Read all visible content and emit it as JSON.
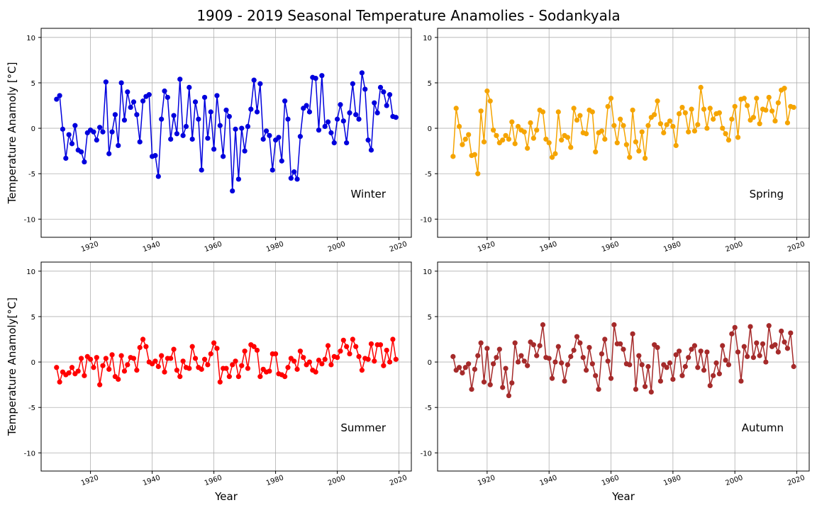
{
  "figure": {
    "title": "1909 - 2019 Seasonal Temperature Anamolies - Sodankyala"
  },
  "chart_data": [
    {
      "type": "line",
      "season_label": "Winter",
      "color": "#0000dd",
      "ylabel": "Temperature Anamoly [°C]",
      "xlabel": "",
      "xlim": [
        1904,
        2024
      ],
      "ylim": [
        -12,
        11
      ],
      "xticks": [
        1920,
        1940,
        1960,
        1980,
        2000,
        2020
      ],
      "yticks": [
        -10,
        -5,
        0,
        5,
        10
      ],
      "grid": true,
      "x_start": 1909,
      "values": [
        3.2,
        3.6,
        -0.1,
        -3.3,
        -0.7,
        -1.7,
        0.3,
        -2.4,
        -2.6,
        -3.7,
        -0.5,
        -0.2,
        -0.4,
        -1.3,
        0.1,
        -0.4,
        5.1,
        -2.8,
        -0.4,
        1.5,
        -1.9,
        5.0,
        0.9,
        4.0,
        2.3,
        2.9,
        1.5,
        -1.5,
        3.0,
        3.5,
        3.7,
        -3.1,
        -3.0,
        -5.3,
        1.0,
        4.1,
        3.4,
        -1.2,
        1.4,
        -0.6,
        5.4,
        -0.8,
        0.2,
        4.5,
        -1.2,
        2.9,
        1.0,
        -4.6,
        3.4,
        -1.1,
        1.8,
        -2.3,
        3.6,
        0.3,
        -3.1,
        2.0,
        1.3,
        -6.9,
        -0.1,
        -5.6,
        0.0,
        -2.5,
        0.2,
        2.1,
        5.3,
        1.8,
        4.9,
        -1.2,
        -0.3,
        -0.8,
        -4.6,
        -1.3,
        -1.0,
        -3.6,
        3.0,
        1.0,
        -5.5,
        -4.8,
        -5.6,
        -0.9,
        2.2,
        2.5,
        1.8,
        5.6,
        5.5,
        -0.2,
        5.8,
        0.2,
        0.7,
        -0.5,
        -1.6,
        1.0,
        2.6,
        0.8,
        -1.6,
        1.7,
        4.9,
        1.5,
        1.0,
        6.1,
        4.3,
        -1.3,
        -2.4,
        2.8,
        1.7,
        4.5,
        4.0,
        2.5,
        3.7,
        1.3,
        1.2
      ]
    },
    {
      "type": "line",
      "season_label": "Spring",
      "color": "#f5a400",
      "ylabel": "",
      "xlabel": "",
      "xlim": [
        1904,
        2024
      ],
      "ylim": [
        -12,
        11
      ],
      "xticks": [
        1920,
        1940,
        1960,
        1980,
        2000,
        2020
      ],
      "yticks": [
        -10,
        -5,
        0,
        5,
        10
      ],
      "grid": true,
      "x_start": 1909,
      "values": [
        -3.1,
        2.2,
        0.2,
        -1.8,
        -1.2,
        -0.7,
        -3.0,
        -2.9,
        -5.0,
        1.9,
        -1.5,
        4.1,
        3.0,
        -0.2,
        -0.8,
        -1.6,
        -1.3,
        -0.8,
        -1.2,
        0.7,
        -1.7,
        0.2,
        -0.2,
        -0.4,
        -2.2,
        0.6,
        -1.1,
        -0.2,
        2.0,
        1.8,
        -1.2,
        -1.6,
        -3.2,
        -2.8,
        1.8,
        -1.3,
        -0.8,
        -1.0,
        -2.1,
        2.2,
        0.9,
        1.4,
        -0.5,
        -0.6,
        2.0,
        1.8,
        -2.6,
        -0.5,
        -0.3,
        -1.2,
        2.4,
        3.3,
        0.3,
        -1.6,
        1.0,
        0.3,
        -1.8,
        -3.2,
        2.0,
        -1.5,
        -2.5,
        -0.4,
        -3.3,
        0.3,
        1.2,
        1.5,
        3.0,
        0.5,
        -0.5,
        0.4,
        0.8,
        0.2,
        -1.9,
        1.6,
        2.3,
        1.7,
        -0.4,
        2.1,
        -0.3,
        0.4,
        4.5,
        2.1,
        0.0,
        2.2,
        1.0,
        1.6,
        1.7,
        0.0,
        -0.6,
        -1.3,
        1.0,
        2.4,
        -1.0,
        3.2,
        3.3,
        2.5,
        0.9,
        1.2,
        3.3,
        0.5,
        2.1,
        2.0,
        3.4,
        1.9,
        0.8,
        2.8,
        4.2,
        4.4,
        0.6,
        2.4,
        2.3
      ]
    },
    {
      "type": "line",
      "season_label": "Summer",
      "color": "#ff0000",
      "ylabel": "Temperature Anamoly[°C]",
      "xlabel": "Year",
      "xlim": [
        1904,
        2024
      ],
      "ylim": [
        -12,
        11
      ],
      "xticks": [
        1920,
        1940,
        1960,
        1980,
        2000,
        2020
      ],
      "yticks": [
        -10,
        -5,
        0,
        5,
        10
      ],
      "grid": true,
      "x_start": 1909,
      "values": [
        -0.6,
        -2.2,
        -1.1,
        -1.4,
        -1.2,
        -0.6,
        -1.3,
        -1.0,
        0.4,
        -1.5,
        0.6,
        0.3,
        -0.6,
        0.5,
        -2.5,
        -0.4,
        0.4,
        -0.8,
        0.8,
        -1.6,
        -1.9,
        0.7,
        -1.0,
        -0.3,
        0.5,
        0.4,
        -0.9,
        1.6,
        2.5,
        1.7,
        0.0,
        -0.2,
        0.1,
        -0.5,
        0.7,
        -1.1,
        0.4,
        0.4,
        1.4,
        -0.9,
        -1.6,
        0.1,
        -0.6,
        -0.7,
        1.7,
        0.4,
        -0.6,
        -0.8,
        0.3,
        -0.3,
        0.9,
        2.1,
        1.5,
        -2.2,
        -0.7,
        -0.7,
        -1.6,
        -0.3,
        0.1,
        -1.6,
        -0.4,
        1.2,
        -0.7,
        1.9,
        1.7,
        1.3,
        -1.6,
        -0.8,
        -1.1,
        -1.0,
        0.9,
        0.9,
        -1.3,
        -1.4,
        -1.6,
        -0.6,
        0.4,
        0.1,
        -0.8,
        1.2,
        0.5,
        -0.3,
        0.0,
        -0.9,
        -1.1,
        0.2,
        -0.2,
        0.3,
        1.8,
        -0.3,
        0.6,
        0.5,
        1.2,
        2.4,
        1.7,
        0.9,
        2.5,
        1.7,
        0.6,
        -0.9,
        0.4,
        0.3,
        2.0,
        0.1,
        1.9,
        1.9,
        -0.4,
        1.3,
        0.0,
        2.5,
        0.3
      ]
    },
    {
      "type": "line",
      "season_label": "Autumn",
      "color": "#a52a2a",
      "ylabel": "",
      "xlabel": "Year",
      "xlim": [
        1904,
        2024
      ],
      "ylim": [
        -12,
        11
      ],
      "xticks": [
        1920,
        1940,
        1960,
        1980,
        2000,
        2020
      ],
      "yticks": [
        -10,
        -5,
        0,
        5,
        10
      ],
      "grid": true,
      "x_start": 1909,
      "values": [
        0.6,
        -0.9,
        -0.6,
        -1.2,
        -0.6,
        -0.2,
        -3.0,
        -0.8,
        0.7,
        2.1,
        -2.2,
        1.5,
        -2.5,
        -0.2,
        0.5,
        1.4,
        -2.8,
        -0.7,
        -3.7,
        -2.3,
        2.1,
        0.0,
        0.7,
        0.1,
        -0.4,
        2.2,
        1.9,
        0.7,
        1.8,
        4.1,
        0.5,
        0.4,
        -1.8,
        0.0,
        1.7,
        -0.1,
        -2.1,
        -0.3,
        0.6,
        1.3,
        2.8,
        2.1,
        0.5,
        -0.9,
        1.6,
        -0.2,
        -1.5,
        -3.0,
        0.9,
        2.5,
        0.1,
        -1.8,
        4.1,
        2.0,
        2.0,
        1.4,
        -0.2,
        -0.3,
        3.1,
        -3.0,
        0.7,
        -0.3,
        -2.7,
        -0.5,
        -3.3,
        1.9,
        1.6,
        -2.1,
        -0.3,
        -0.6,
        -0.1,
        -1.9,
        0.8,
        1.2,
        -1.5,
        -0.5,
        0.5,
        1.4,
        1.8,
        -0.6,
        1.2,
        -0.9,
        1.1,
        -2.6,
        -1.5,
        -0.1,
        -1.3,
        1.8,
        0.2,
        -0.3,
        3.1,
        3.8,
        1.1,
        -2.1,
        1.7,
        0.6,
        3.9,
        0.5,
        2.1,
        0.7,
        2.0,
        0.0,
        4.0,
        1.7,
        1.9,
        1.1,
        3.4,
        2.2,
        1.5,
        3.2,
        -0.5
      ]
    }
  ]
}
